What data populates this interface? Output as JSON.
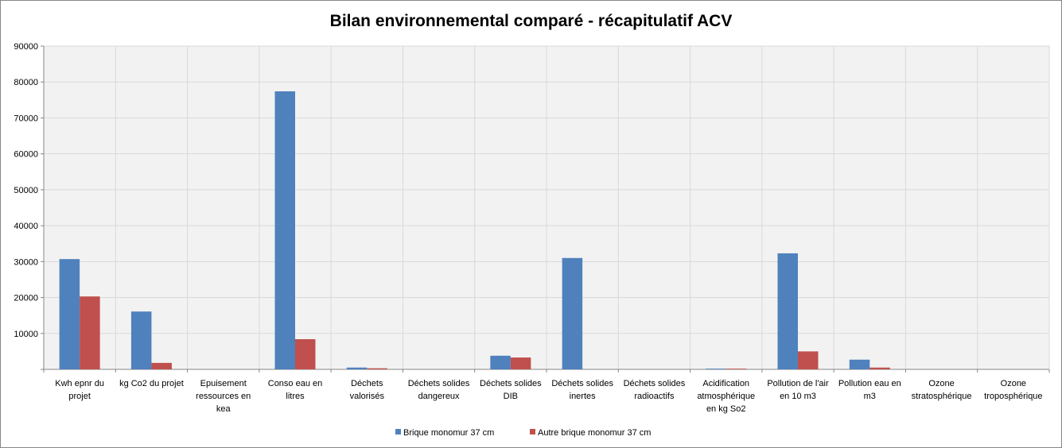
{
  "chart_data": {
    "type": "bar",
    "title": "Bilan environnemental comparé - récapitulatif ACV",
    "xlabel": "",
    "ylabel": "",
    "ylim": [
      0,
      90000
    ],
    "yticks": [
      "",
      "10000",
      "20000",
      "30000",
      "40000",
      "50000",
      "60000",
      "70000",
      "80000",
      "90000"
    ],
    "grid": true,
    "legend_position": "bottom",
    "categories": [
      [
        "Kwh epnr du",
        "projet"
      ],
      [
        "kg Co2 du projet"
      ],
      [
        "Epuisement",
        "ressources en",
        "kea"
      ],
      [
        "Conso eau en",
        "litres"
      ],
      [
        "Déchets",
        "valorisés"
      ],
      [
        "Déchets solides",
        "dangereux"
      ],
      [
        "Déchets solides",
        "DIB"
      ],
      [
        "Déchets solides",
        "inertes"
      ],
      [
        "Déchets solides",
        "radioactifs"
      ],
      [
        "Acidification",
        "atmosphérique",
        "en kg So2"
      ],
      [
        "Pollution de l'air",
        "en 10 m3"
      ],
      [
        "Pollution eau en",
        "m3"
      ],
      [
        "Ozone",
        "stratosphérique"
      ],
      [
        "Ozone",
        "troposphérique"
      ]
    ],
    "series": [
      {
        "name": "Brique monomur  37 cm",
        "color": "#4f81bd",
        "values": [
          30700,
          16100,
          0,
          77400,
          500,
          0,
          3800,
          31000,
          0,
          200,
          32300,
          2700,
          0,
          0
        ]
      },
      {
        "name": "Autre brique monomur  37 cm",
        "color": "#c0504d",
        "values": [
          20300,
          1800,
          0,
          8400,
          300,
          0,
          3300,
          0,
          0,
          200,
          5000,
          500,
          0,
          0
        ]
      }
    ]
  }
}
